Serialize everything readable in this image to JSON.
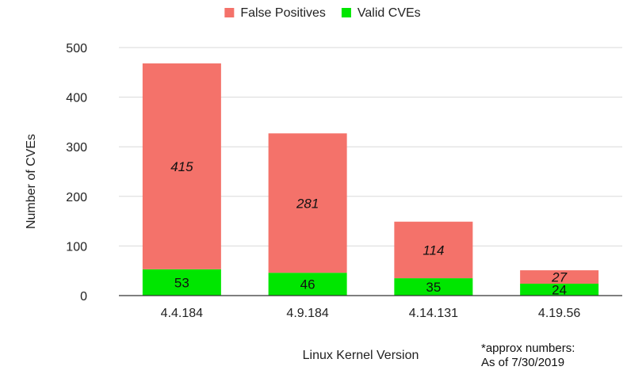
{
  "chart_data": {
    "type": "bar",
    "stacked": true,
    "categories": [
      "4.4.184",
      "4.9.184",
      "4.14.131",
      "4.19.56"
    ],
    "series": [
      {
        "name": "Valid CVEs",
        "values": [
          53,
          46,
          35,
          24
        ],
        "color": "#00e600",
        "label_style": "normal"
      },
      {
        "name": "False Positives",
        "values": [
          415,
          281,
          114,
          27
        ],
        "color": "#f4726a",
        "label_style": "italic"
      }
    ],
    "legend_order": [
      "False Positives",
      "Valid CVEs"
    ],
    "legend_position": "top",
    "xlabel": "Linux Kernel Version",
    "ylabel": "Number of CVEs",
    "ylim": [
      0,
      500
    ],
    "yticks": [
      0,
      100,
      200,
      300,
      400,
      500
    ],
    "grid": "horizontal",
    "gridline_color": "#d9d9d9",
    "axis_color": "#333333"
  },
  "footnote": {
    "line1": "*approx numbers:",
    "line2": "As of 7/30/2019"
  }
}
